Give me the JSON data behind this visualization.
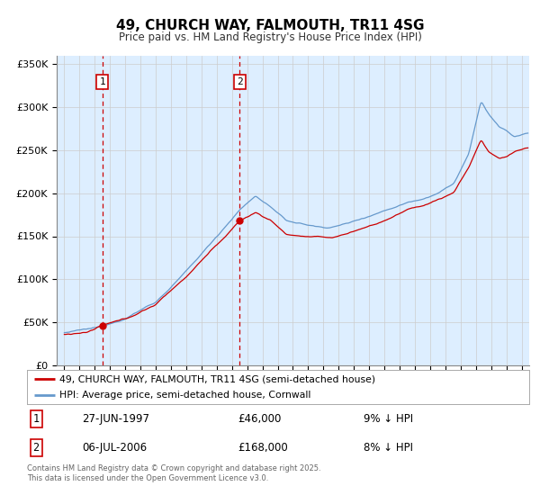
{
  "title": "49, CHURCH WAY, FALMOUTH, TR11 4SG",
  "subtitle": "Price paid vs. HM Land Registry's House Price Index (HPI)",
  "legend_line1": "49, CHURCH WAY, FALMOUTH, TR11 4SG (semi-detached house)",
  "legend_line2": "HPI: Average price, semi-detached house, Cornwall",
  "footer": "Contains HM Land Registry data © Crown copyright and database right 2025.\nThis data is licensed under the Open Government Licence v3.0.",
  "annotation1_date": "27-JUN-1997",
  "annotation1_price": "£46,000",
  "annotation1_hpi": "9% ↓ HPI",
  "annotation2_date": "06-JUL-2006",
  "annotation2_price": "£168,000",
  "annotation2_hpi": "8% ↓ HPI",
  "purchase1_x": 1997.49,
  "purchase1_y": 46000,
  "purchase2_x": 2006.51,
  "purchase2_y": 168000,
  "red_color": "#cc0000",
  "blue_color": "#6699cc",
  "background_color": "#ddeeff",
  "grid_color": "#cccccc",
  "vline_color": "#cc0000",
  "ylim": [
    0,
    360000
  ],
  "xlim": [
    1994.5,
    2025.5
  ],
  "yticks": [
    0,
    50000,
    100000,
    150000,
    200000,
    250000,
    300000,
    350000
  ],
  "ytick_labels": [
    "£0",
    "£50K",
    "£100K",
    "£150K",
    "£200K",
    "£250K",
    "£300K",
    "£350K"
  ]
}
